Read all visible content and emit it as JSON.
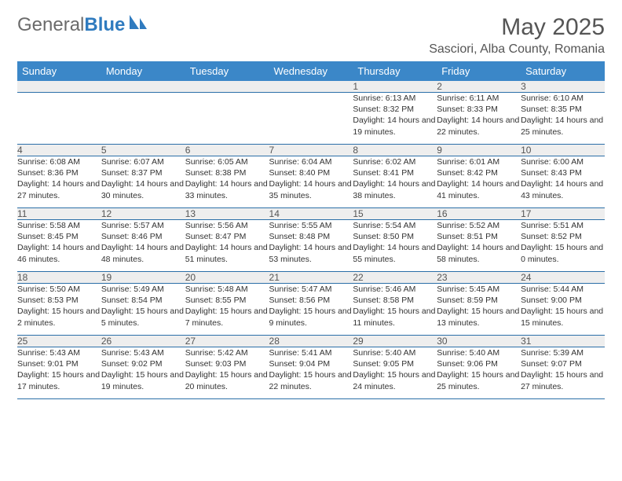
{
  "logo": {
    "word1": "General",
    "word2": "Blue"
  },
  "title": "May 2025",
  "location": "Sasciori, Alba County, Romania",
  "weekdays": [
    "Sunday",
    "Monday",
    "Tuesday",
    "Wednesday",
    "Thursday",
    "Friday",
    "Saturday"
  ],
  "colors": {
    "header_bg": "#3b87c8",
    "header_fg": "#ffffff",
    "daynum_bg": "#eeeeee",
    "border": "#2b6fa8",
    "text": "#333333",
    "title": "#555555"
  },
  "weeks": [
    [
      {
        "n": "",
        "sr": "",
        "ss": "",
        "dl": ""
      },
      {
        "n": "",
        "sr": "",
        "ss": "",
        "dl": ""
      },
      {
        "n": "",
        "sr": "",
        "ss": "",
        "dl": ""
      },
      {
        "n": "",
        "sr": "",
        "ss": "",
        "dl": ""
      },
      {
        "n": "1",
        "sr": "Sunrise: 6:13 AM",
        "ss": "Sunset: 8:32 PM",
        "dl": "Daylight: 14 hours and 19 minutes."
      },
      {
        "n": "2",
        "sr": "Sunrise: 6:11 AM",
        "ss": "Sunset: 8:33 PM",
        "dl": "Daylight: 14 hours and 22 minutes."
      },
      {
        "n": "3",
        "sr": "Sunrise: 6:10 AM",
        "ss": "Sunset: 8:35 PM",
        "dl": "Daylight: 14 hours and 25 minutes."
      }
    ],
    [
      {
        "n": "4",
        "sr": "Sunrise: 6:08 AM",
        "ss": "Sunset: 8:36 PM",
        "dl": "Daylight: 14 hours and 27 minutes."
      },
      {
        "n": "5",
        "sr": "Sunrise: 6:07 AM",
        "ss": "Sunset: 8:37 PM",
        "dl": "Daylight: 14 hours and 30 minutes."
      },
      {
        "n": "6",
        "sr": "Sunrise: 6:05 AM",
        "ss": "Sunset: 8:38 PM",
        "dl": "Daylight: 14 hours and 33 minutes."
      },
      {
        "n": "7",
        "sr": "Sunrise: 6:04 AM",
        "ss": "Sunset: 8:40 PM",
        "dl": "Daylight: 14 hours and 35 minutes."
      },
      {
        "n": "8",
        "sr": "Sunrise: 6:02 AM",
        "ss": "Sunset: 8:41 PM",
        "dl": "Daylight: 14 hours and 38 minutes."
      },
      {
        "n": "9",
        "sr": "Sunrise: 6:01 AM",
        "ss": "Sunset: 8:42 PM",
        "dl": "Daylight: 14 hours and 41 minutes."
      },
      {
        "n": "10",
        "sr": "Sunrise: 6:00 AM",
        "ss": "Sunset: 8:43 PM",
        "dl": "Daylight: 14 hours and 43 minutes."
      }
    ],
    [
      {
        "n": "11",
        "sr": "Sunrise: 5:58 AM",
        "ss": "Sunset: 8:45 PM",
        "dl": "Daylight: 14 hours and 46 minutes."
      },
      {
        "n": "12",
        "sr": "Sunrise: 5:57 AM",
        "ss": "Sunset: 8:46 PM",
        "dl": "Daylight: 14 hours and 48 minutes."
      },
      {
        "n": "13",
        "sr": "Sunrise: 5:56 AM",
        "ss": "Sunset: 8:47 PM",
        "dl": "Daylight: 14 hours and 51 minutes."
      },
      {
        "n": "14",
        "sr": "Sunrise: 5:55 AM",
        "ss": "Sunset: 8:48 PM",
        "dl": "Daylight: 14 hours and 53 minutes."
      },
      {
        "n": "15",
        "sr": "Sunrise: 5:54 AM",
        "ss": "Sunset: 8:50 PM",
        "dl": "Daylight: 14 hours and 55 minutes."
      },
      {
        "n": "16",
        "sr": "Sunrise: 5:52 AM",
        "ss": "Sunset: 8:51 PM",
        "dl": "Daylight: 14 hours and 58 minutes."
      },
      {
        "n": "17",
        "sr": "Sunrise: 5:51 AM",
        "ss": "Sunset: 8:52 PM",
        "dl": "Daylight: 15 hours and 0 minutes."
      }
    ],
    [
      {
        "n": "18",
        "sr": "Sunrise: 5:50 AM",
        "ss": "Sunset: 8:53 PM",
        "dl": "Daylight: 15 hours and 2 minutes."
      },
      {
        "n": "19",
        "sr": "Sunrise: 5:49 AM",
        "ss": "Sunset: 8:54 PM",
        "dl": "Daylight: 15 hours and 5 minutes."
      },
      {
        "n": "20",
        "sr": "Sunrise: 5:48 AM",
        "ss": "Sunset: 8:55 PM",
        "dl": "Daylight: 15 hours and 7 minutes."
      },
      {
        "n": "21",
        "sr": "Sunrise: 5:47 AM",
        "ss": "Sunset: 8:56 PM",
        "dl": "Daylight: 15 hours and 9 minutes."
      },
      {
        "n": "22",
        "sr": "Sunrise: 5:46 AM",
        "ss": "Sunset: 8:58 PM",
        "dl": "Daylight: 15 hours and 11 minutes."
      },
      {
        "n": "23",
        "sr": "Sunrise: 5:45 AM",
        "ss": "Sunset: 8:59 PM",
        "dl": "Daylight: 15 hours and 13 minutes."
      },
      {
        "n": "24",
        "sr": "Sunrise: 5:44 AM",
        "ss": "Sunset: 9:00 PM",
        "dl": "Daylight: 15 hours and 15 minutes."
      }
    ],
    [
      {
        "n": "25",
        "sr": "Sunrise: 5:43 AM",
        "ss": "Sunset: 9:01 PM",
        "dl": "Daylight: 15 hours and 17 minutes."
      },
      {
        "n": "26",
        "sr": "Sunrise: 5:43 AM",
        "ss": "Sunset: 9:02 PM",
        "dl": "Daylight: 15 hours and 19 minutes."
      },
      {
        "n": "27",
        "sr": "Sunrise: 5:42 AM",
        "ss": "Sunset: 9:03 PM",
        "dl": "Daylight: 15 hours and 20 minutes."
      },
      {
        "n": "28",
        "sr": "Sunrise: 5:41 AM",
        "ss": "Sunset: 9:04 PM",
        "dl": "Daylight: 15 hours and 22 minutes."
      },
      {
        "n": "29",
        "sr": "Sunrise: 5:40 AM",
        "ss": "Sunset: 9:05 PM",
        "dl": "Daylight: 15 hours and 24 minutes."
      },
      {
        "n": "30",
        "sr": "Sunrise: 5:40 AM",
        "ss": "Sunset: 9:06 PM",
        "dl": "Daylight: 15 hours and 25 minutes."
      },
      {
        "n": "31",
        "sr": "Sunrise: 5:39 AM",
        "ss": "Sunset: 9:07 PM",
        "dl": "Daylight: 15 hours and 27 minutes."
      }
    ]
  ]
}
